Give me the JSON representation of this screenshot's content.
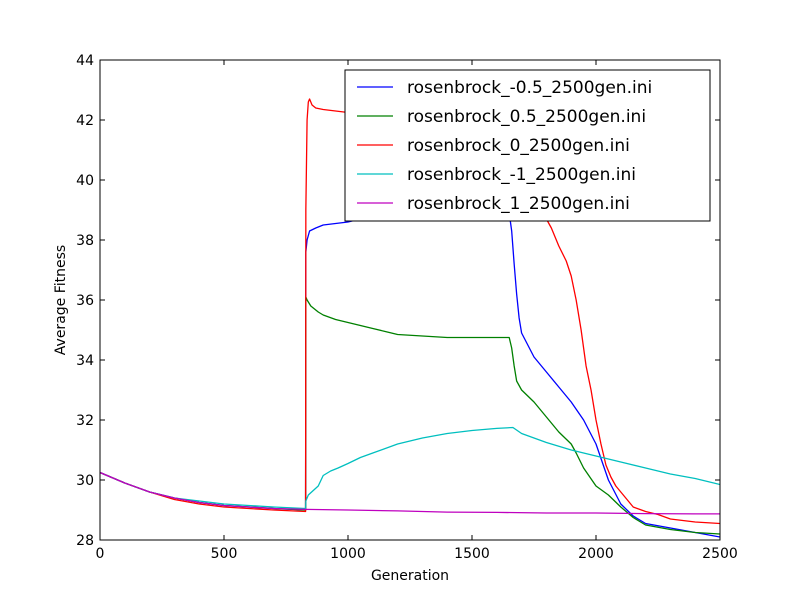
{
  "chart_data": {
    "type": "line",
    "title": "",
    "xlabel": "Generation",
    "ylabel": "Average Fitness",
    "xlim": [
      0,
      2500
    ],
    "ylim": [
      28,
      44
    ],
    "xticks": [
      0,
      500,
      1000,
      1500,
      2000,
      2500
    ],
    "yticks": [
      28,
      30,
      32,
      34,
      36,
      38,
      40,
      42,
      44
    ],
    "grid": false,
    "legend": "top-right",
    "series": [
      {
        "name": "rosenbrock_-0.5_2500gen.ini",
        "color": "#0000ff",
        "x": [
          0,
          100,
          200,
          300,
          400,
          500,
          600,
          700,
          829,
          830,
          835,
          845,
          870,
          900,
          950,
          1000,
          1050,
          1100,
          1200,
          1300,
          1400,
          1500,
          1560,
          1620,
          1650,
          1660,
          1670,
          1680,
          1690,
          1700,
          1750,
          1800,
          1850,
          1900,
          1950,
          2000,
          2050,
          2100,
          2150,
          2200,
          2300,
          2400,
          2500
        ],
        "y": [
          30.25,
          29.9,
          29.6,
          29.4,
          29.25,
          29.15,
          29.1,
          29.05,
          29.0,
          37.6,
          38.0,
          38.3,
          38.4,
          38.5,
          38.55,
          38.6,
          38.7,
          38.8,
          38.9,
          39.0,
          39.1,
          39.2,
          39.3,
          39.1,
          38.9,
          38.3,
          37.2,
          36.2,
          35.4,
          34.9,
          34.1,
          33.6,
          33.1,
          32.6,
          32.0,
          31.2,
          30.0,
          29.2,
          28.8,
          28.55,
          28.4,
          28.25,
          28.1
        ]
      },
      {
        "name": "rosenbrock_0.5_2500gen.ini",
        "color": "#008000",
        "x": [
          0,
          100,
          200,
          300,
          400,
          500,
          600,
          700,
          829,
          830,
          835,
          850,
          880,
          900,
          950,
          1000,
          1050,
          1100,
          1150,
          1200,
          1300,
          1400,
          1500,
          1600,
          1650,
          1660,
          1670,
          1680,
          1700,
          1750,
          1800,
          1850,
          1900,
          1920,
          1950,
          2000,
          2050,
          2100,
          2150,
          2200,
          2300,
          2400,
          2500
        ],
        "y": [
          30.25,
          29.9,
          29.6,
          29.4,
          29.25,
          29.15,
          29.1,
          29.05,
          29.0,
          36.1,
          36.0,
          35.8,
          35.6,
          35.5,
          35.35,
          35.25,
          35.15,
          35.05,
          34.95,
          34.85,
          34.8,
          34.75,
          34.75,
          34.75,
          34.75,
          34.4,
          33.8,
          33.3,
          33.0,
          32.6,
          32.1,
          31.6,
          31.2,
          30.9,
          30.4,
          29.8,
          29.5,
          29.1,
          28.75,
          28.5,
          28.35,
          28.25,
          28.2
        ]
      },
      {
        "name": "rosenbrock_0_2500gen.ini",
        "color": "#ff0000",
        "x": [
          0,
          100,
          200,
          300,
          400,
          500,
          600,
          700,
          829,
          830,
          835,
          840,
          845,
          855,
          870,
          900,
          950,
          1000,
          1100,
          1200,
          1300,
          1400,
          1500,
          1600,
          1700,
          1750,
          1780,
          1800,
          1820,
          1850,
          1880,
          1900,
          1920,
          1940,
          1960,
          1980,
          2000,
          2020,
          2040,
          2060,
          2080,
          2100,
          2150,
          2200,
          2250,
          2300,
          2400,
          2500
        ],
        "y": [
          30.25,
          29.9,
          29.6,
          29.35,
          29.2,
          29.1,
          29.05,
          29.0,
          28.95,
          39.0,
          42.0,
          42.6,
          42.7,
          42.5,
          42.4,
          42.35,
          42.3,
          42.25,
          42.2,
          42.1,
          42.0,
          41.9,
          41.8,
          41.5,
          41.0,
          40.0,
          39.0,
          38.7,
          38.4,
          37.8,
          37.3,
          36.8,
          36.0,
          35.0,
          33.8,
          33.0,
          32.0,
          31.2,
          30.5,
          30.1,
          29.8,
          29.6,
          29.1,
          28.95,
          28.85,
          28.7,
          28.6,
          28.55
        ]
      },
      {
        "name": "rosenbrock_-1_2500gen.ini",
        "color": "#00bfbf",
        "x": [
          0,
          100,
          200,
          300,
          400,
          500,
          600,
          700,
          829,
          830,
          840,
          860,
          880,
          900,
          930,
          960,
          1000,
          1050,
          1100,
          1200,
          1300,
          1400,
          1500,
          1600,
          1665,
          1700,
          1800,
          1900,
          2000,
          2100,
          2200,
          2300,
          2400,
          2500
        ],
        "y": [
          30.25,
          29.9,
          29.6,
          29.4,
          29.3,
          29.2,
          29.15,
          29.1,
          29.05,
          29.3,
          29.5,
          29.65,
          29.8,
          30.15,
          30.3,
          30.4,
          30.55,
          30.75,
          30.9,
          31.2,
          31.4,
          31.55,
          31.65,
          31.72,
          31.75,
          31.55,
          31.25,
          31.0,
          30.8,
          30.6,
          30.4,
          30.2,
          30.05,
          29.85
        ]
      },
      {
        "name": "rosenbrock_1_2500gen.ini",
        "color": "#bf00bf",
        "x": [
          0,
          100,
          200,
          300,
          400,
          500,
          600,
          700,
          830,
          1000,
          1200,
          1400,
          1600,
          1800,
          2000,
          2200,
          2400,
          2500
        ],
        "y": [
          30.25,
          29.9,
          29.6,
          29.4,
          29.25,
          29.15,
          29.1,
          29.05,
          29.02,
          29.0,
          28.97,
          28.93,
          28.92,
          28.9,
          28.9,
          28.88,
          28.87,
          28.87
        ]
      }
    ]
  }
}
